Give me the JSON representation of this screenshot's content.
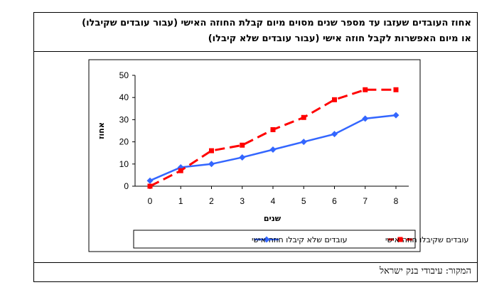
{
  "header": {
    "title_line1": "אחוז העובדים שעזבו עד מספר שנים מסוים מיום קבלת החוזה האישי (עבור עובדים שקיבלו)",
    "title_line2": "או מיום האפשרות לקבל חוזה אישי (עבור עובדים שלא קיבלו)"
  },
  "footer": {
    "source": "המקור: עיבודי בנק ישראל"
  },
  "colors": {
    "series_blue": "#3366ff",
    "series_red": "#ff0000"
  },
  "chart_data": {
    "type": "line",
    "title": "",
    "xlabel": "שנים",
    "ylabel": "אחוז",
    "x": [
      0,
      1,
      2,
      3,
      4,
      5,
      6,
      7,
      8
    ],
    "ylim": [
      0,
      50
    ],
    "yticks": [
      0,
      10,
      20,
      30,
      40,
      50
    ],
    "grid": false,
    "legend_position": "bottom",
    "series": [
      {
        "name": "עובדים שלא קיבלו חוזה אישי",
        "style": "solid",
        "marker": "diamond",
        "color": "#3366ff",
        "values": [
          2.5,
          8.5,
          10,
          13,
          16.5,
          20,
          23.5,
          30.5,
          32
        ]
      },
      {
        "name": "עובדים שקיבלו חוזה אישי",
        "style": "dashed",
        "marker": "square",
        "color": "#ff0000",
        "values": [
          0,
          7,
          16,
          18.5,
          25.5,
          31,
          39,
          43.5,
          43.5
        ]
      }
    ]
  }
}
